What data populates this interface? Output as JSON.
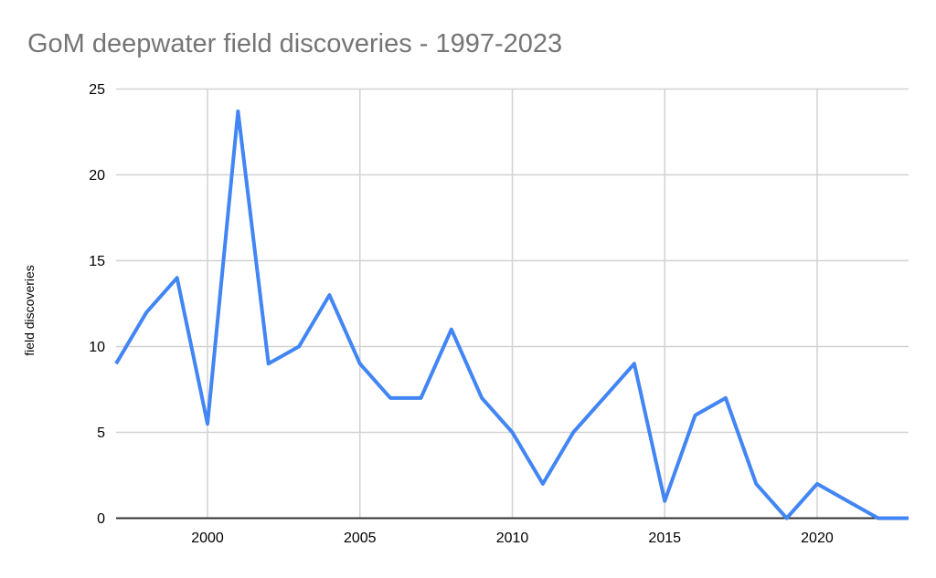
{
  "chart_data": {
    "type": "line",
    "title": "GoM deepwater field discoveries - 1997-2023",
    "xlabel": "",
    "ylabel": "field discoveries",
    "x": [
      1997,
      1998,
      1999,
      2000,
      2001,
      2002,
      2003,
      2004,
      2005,
      2006,
      2007,
      2008,
      2009,
      2010,
      2011,
      2012,
      2013,
      2014,
      2015,
      2016,
      2017,
      2018,
      2019,
      2020,
      2021,
      2022,
      2023
    ],
    "values": [
      9,
      12,
      14,
      5.5,
      23.7,
      9,
      10,
      13,
      9,
      7,
      7,
      11,
      7,
      5,
      2,
      5,
      7,
      9,
      1,
      6,
      7,
      2,
      0,
      2,
      1,
      0,
      0
    ],
    "series_name": "field discoveries",
    "xlim": [
      1997,
      2023
    ],
    "ylim": [
      0,
      25
    ],
    "yticks": [
      0,
      5,
      10,
      15,
      20,
      25
    ],
    "xticks": [
      2000,
      2005,
      2010,
      2015,
      2020
    ],
    "grid": true,
    "legend": "none",
    "colors": {
      "line": "#4285f4",
      "gridline": "#d2d2d2",
      "axis": "#333333",
      "title": "#757575",
      "tick_label": "#000000",
      "axis_title": "#000000",
      "background": "#ffffff"
    }
  }
}
